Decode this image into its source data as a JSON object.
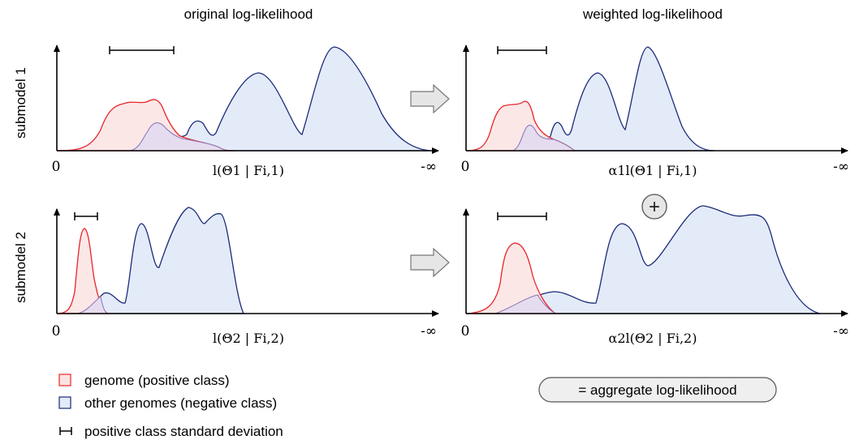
{
  "columns": {
    "left_title": "original log-likelihood",
    "right_title": "weighted log-likelihood"
  },
  "rows": {
    "row1_label": "submodel 1",
    "row2_label": "submodel 2"
  },
  "axes": {
    "origin_label": "0",
    "end_label": "-∞"
  },
  "panels": [
    {
      "id": "p11",
      "xlabel_html": "l(Θ<tspan baseline-shift='sub' font-size='11'>1</tspan> | F<tspan baseline-shift='sub' font-size='11'>i,1</tspan>)",
      "xlabel": "l(Θ1 | Fi,1)"
    },
    {
      "id": "p12",
      "xlabel": "α1l(Θ1 | Fi,1)"
    },
    {
      "id": "p21",
      "xlabel": "l(Θ2 | Fi,2)"
    },
    {
      "id": "p22",
      "xlabel": "α2l(Θ2 | Fi,2)"
    }
  ],
  "operators": {
    "plus_symbol": "+",
    "aggregate_label": "= aggregate log-likelihood"
  },
  "legend": {
    "positive": "genome (positive class)",
    "negative": "other genomes (negative class)",
    "stddev": "positive class standard deviation"
  },
  "colors": {
    "positive_stroke": "#e8242a",
    "positive_fill": "#fbe3e3",
    "negative_stroke": "#1b2a7a",
    "negative_fill": "#e3ebf8",
    "overlap_fill": "#e6dcef",
    "arrow_fill": "#e6e6e6",
    "arrow_stroke": "#777777",
    "pill_fill": "#efefef"
  },
  "icons": {
    "transform_arrow": "right-arrow-icon",
    "plus": "circled-plus-icon",
    "stddev": "error-bar-icon"
  }
}
